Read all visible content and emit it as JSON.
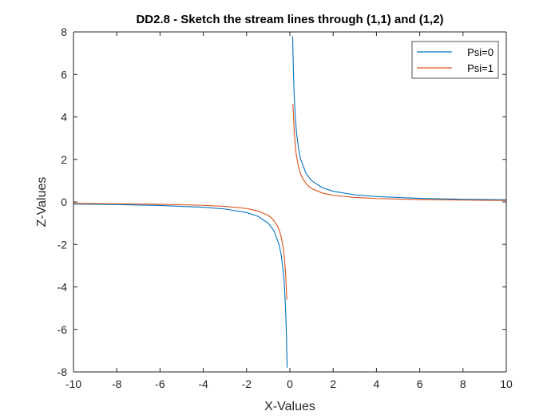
{
  "chart_data": {
    "type": "line",
    "title": "DD2.8 - Sketch the stream lines through (1,1) and (1,2)",
    "xlabel": "X-Values",
    "ylabel": "Z-Values",
    "xlim": [
      -10,
      10
    ],
    "ylim": [
      -8,
      8
    ],
    "xticks": [
      -10,
      -8,
      -6,
      -4,
      -2,
      0,
      2,
      4,
      6,
      8,
      10
    ],
    "yticks": [
      -8,
      -6,
      -4,
      -2,
      0,
      2,
      4,
      6,
      8
    ],
    "grid": false,
    "legend_position": "top-right",
    "series": [
      {
        "name": "Psi=0",
        "color": "#0072BD",
        "x": [
          -10,
          -8,
          -6,
          -4,
          -3,
          -2,
          -1.5,
          -1,
          -0.75,
          -0.5,
          -0.4,
          -0.3,
          -0.25,
          -0.2,
          -0.16,
          -0.13,
          -0.128,
          null,
          0.128,
          0.13,
          0.16,
          0.2,
          0.25,
          0.3,
          0.4,
          0.5,
          0.75,
          1,
          1.5,
          2,
          3,
          4,
          6,
          8,
          10
        ],
        "y": [
          -0.1,
          -0.125,
          -0.167,
          -0.25,
          -0.333,
          -0.5,
          -0.667,
          -1,
          -1.333,
          -2,
          -2.5,
          -3.333,
          -4,
          -5,
          -6.25,
          -7.7,
          -7.8,
          null,
          7.8,
          7.7,
          6.25,
          5,
          4,
          3.333,
          2.5,
          2,
          1.333,
          1,
          0.667,
          0.5,
          0.333,
          0.25,
          0.167,
          0.125,
          0.1
        ]
      },
      {
        "name": "Psi=1",
        "color": "#D95319",
        "x": [
          -10,
          -8,
          -6,
          -4,
          -3,
          -2,
          -1.5,
          -1,
          -0.8,
          -0.6,
          -0.5,
          -0.4,
          -0.3,
          -0.25,
          -0.2,
          -0.16,
          -0.14,
          null,
          0.14,
          0.16,
          0.2,
          0.25,
          0.3,
          0.4,
          0.5,
          0.6,
          0.8,
          1,
          1.5,
          2,
          3,
          4,
          6,
          8,
          10
        ],
        "y": [
          -0.07,
          -0.085,
          -0.11,
          -0.16,
          -0.21,
          -0.31,
          -0.42,
          -0.63,
          -0.8,
          -1.08,
          -1.3,
          -1.65,
          -2.2,
          -2.65,
          -3.33,
          -4.15,
          -4.6,
          null,
          4.6,
          4.15,
          3.33,
          2.65,
          2.2,
          1.65,
          1.3,
          1.08,
          0.8,
          0.63,
          0.42,
          0.31,
          0.21,
          0.16,
          0.11,
          0.085,
          0.07
        ]
      }
    ]
  }
}
